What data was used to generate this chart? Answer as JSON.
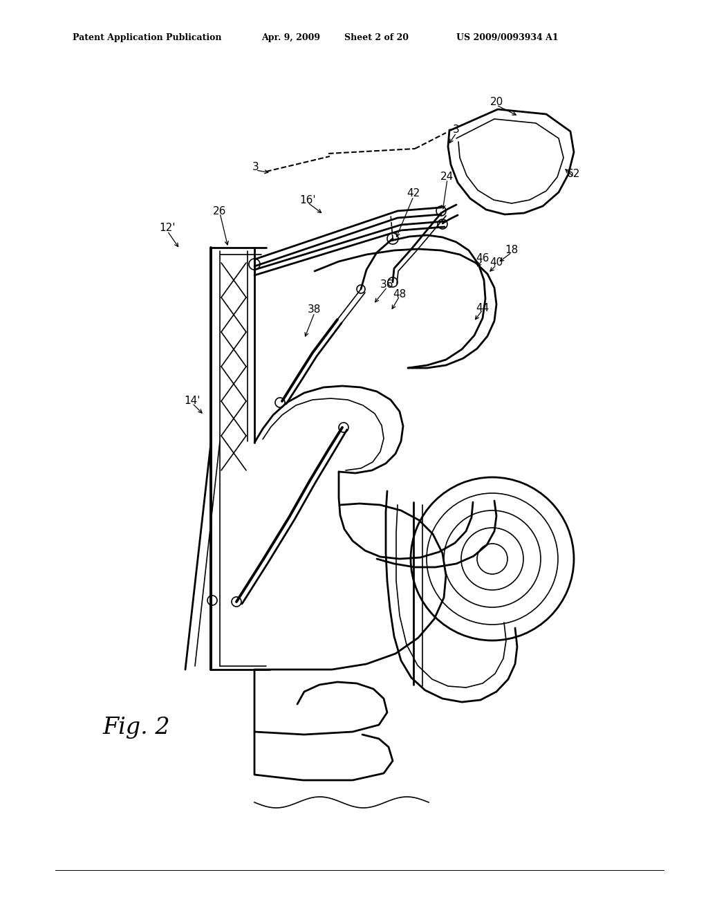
{
  "background_color": "#ffffff",
  "header_text": "Patent Application Publication",
  "header_date": "Apr. 9, 2009",
  "header_sheet": "Sheet 2 of 20",
  "header_patent": "US 2009/0093934 A1",
  "fig_label": "Fig. 2",
  "line_color": "#000000",
  "lw_main": 2.0,
  "lw_thin": 1.2,
  "lw_thick": 2.8
}
